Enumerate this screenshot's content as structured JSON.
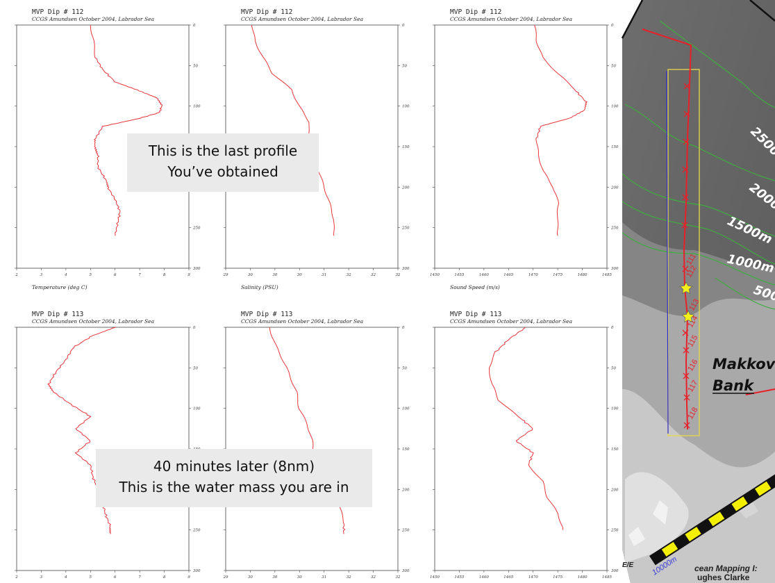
{
  "callouts": {
    "last_profile": [
      "This is the last profile",
      "You’ve obtained"
    ],
    "later": [
      "40 minutes later (8nm)",
      "This is the water mass you are in"
    ]
  },
  "map": {
    "contours": [
      "2500",
      "2000m",
      "1500m",
      "1000m",
      "500"
    ],
    "place": [
      "Makkov",
      "Bank"
    ],
    "stations": [
      "111",
      "112",
      "113",
      "114",
      "115",
      "116",
      "117",
      "118"
    ],
    "scale_label": "10000m",
    "footer": [
      "E/E",
      "cean Mapping I:",
      "ughes Clarke"
    ],
    "colors": {
      "land": "#9a9a9a",
      "contour": "#3fae3f",
      "track": "#e8202a",
      "box": "#e8d84a",
      "line": "#2a2ad8",
      "scale_a": "#f3ef00",
      "scale_b": "#111111"
    }
  },
  "chart_data": [
    {
      "type": "line",
      "title": "MVP Dip # 112",
      "subtitle": "CCGS Amundsen October 2004, Labrador Sea",
      "xlabel": "Temperature (deg C)",
      "x_ticks": [
        "2",
        "3",
        "4",
        "5",
        "6",
        "7",
        "8",
        "9"
      ],
      "xlim": [
        2,
        9
      ],
      "y_ticks": [
        "0",
        "50",
        "100",
        "150",
        "200",
        "250",
        "300"
      ],
      "ylim": [
        0,
        300
      ],
      "series": [
        {
          "depth": [
            0,
            20,
            40,
            55,
            70,
            80,
            90,
            100,
            108,
            115,
            125,
            140,
            150,
            160,
            175,
            190,
            200,
            215,
            230,
            245,
            260
          ],
          "values": [
            5.0,
            5.1,
            5.2,
            5.5,
            6.0,
            6.9,
            7.7,
            7.9,
            7.8,
            7.0,
            5.5,
            5.2,
            5.2,
            5.3,
            5.3,
            5.6,
            5.7,
            6.0,
            6.2,
            6.1,
            6.0
          ]
        }
      ]
    },
    {
      "type": "line",
      "title": "MVP Dip # 112",
      "subtitle": "CCGS Amundsen October 2004, Labrador Sea",
      "xlabel": "Salinity (PSU)",
      "x_ticks": [
        "29",
        "30",
        "30",
        "30",
        "31",
        "32",
        "32",
        "32"
      ],
      "xlim": [
        29,
        36
      ],
      "y_ticks": [
        "0",
        "50",
        "100",
        "150",
        "200",
        "250",
        "300"
      ],
      "ylim": [
        0,
        300
      ],
      "series": [
        {
          "depth": [
            0,
            20,
            40,
            60,
            80,
            100,
            120,
            140,
            160,
            180,
            200,
            220,
            240,
            260
          ],
          "values": [
            30.1,
            30.2,
            30.5,
            30.9,
            31.7,
            32.0,
            32.4,
            32.3,
            32.6,
            32.8,
            33.0,
            33.2,
            33.4,
            33.4
          ]
        }
      ]
    },
    {
      "type": "line",
      "title": "MVP Dip # 112",
      "subtitle": "CCGS Amundsen October 2004, Labrador Sea",
      "xlabel": "Sound Speed (m/s)",
      "x_ticks": [
        "1450",
        "1455",
        "1460",
        "1465",
        "1470",
        "1475",
        "1480",
        "1485"
      ],
      "xlim": [
        1450,
        1485
      ],
      "y_ticks": [
        "0",
        "50",
        "100",
        "150",
        "200",
        "250",
        "300"
      ],
      "ylim": [
        0,
        300
      ],
      "series": [
        {
          "depth": [
            0,
            20,
            40,
            60,
            80,
            95,
            105,
            115,
            125,
            140,
            160,
            180,
            200,
            220,
            240,
            260
          ],
          "values": [
            1470.2,
            1470.8,
            1472.0,
            1475.0,
            1478.5,
            1480.8,
            1480.5,
            1477.5,
            1471.5,
            1470.7,
            1470.9,
            1472.0,
            1474.2,
            1475.2,
            1474.8,
            1475.0
          ]
        }
      ]
    },
    {
      "type": "line",
      "title": "MVP Dip # 113",
      "subtitle": "CCGS Amundsen October 2004, Labrador Sea",
      "xlabel": "",
      "x_ticks": [
        "2",
        "3",
        "4",
        "5",
        "6",
        "7",
        "8",
        "9"
      ],
      "xlim": [
        2,
        9
      ],
      "y_ticks": [
        "0",
        "50",
        "100",
        "150",
        "200",
        "250",
        "300"
      ],
      "ylim": [
        0,
        300
      ],
      "series": [
        {
          "depth": [
            0,
            10,
            25,
            40,
            55,
            70,
            80,
            95,
            110,
            125,
            140,
            155,
            170,
            185,
            200,
            215,
            230,
            245,
            255
          ],
          "values": [
            6.0,
            5.1,
            4.3,
            4.0,
            3.6,
            3.3,
            3.5,
            4.2,
            5.0,
            4.4,
            5.0,
            4.4,
            5.0,
            5.1,
            5.3,
            5.5,
            5.6,
            5.8,
            5.8
          ]
        }
      ]
    },
    {
      "type": "line",
      "title": "MVP Dip # 113",
      "subtitle": "CCGS Amundsen October 2004, Labrador Sea",
      "xlabel": "",
      "x_ticks": [
        "29",
        "30",
        "30",
        "30",
        "31",
        "32",
        "32",
        "32"
      ],
      "xlim": [
        29,
        36
      ],
      "y_ticks": [
        "0",
        "50",
        "100",
        "150",
        "200",
        "250",
        "300"
      ],
      "ylim": [
        0,
        300
      ],
      "series": [
        {
          "depth": [
            0,
            20,
            40,
            60,
            80,
            100,
            120,
            140,
            160,
            180,
            200,
            220,
            240,
            255
          ],
          "values": [
            30.8,
            31.0,
            31.3,
            31.6,
            31.9,
            32.0,
            32.3,
            32.5,
            32.6,
            33.0,
            33.3,
            33.6,
            33.8,
            33.8
          ]
        }
      ]
    },
    {
      "type": "line",
      "title": "MVP Dip # 113",
      "subtitle": "CCGS Amundsen October 2004, Labrador Sea",
      "xlabel": "",
      "x_ticks": [
        "1450",
        "1455",
        "1460",
        "1465",
        "1470",
        "1475",
        "1480",
        "1485"
      ],
      "xlim": [
        1450,
        1485
      ],
      "y_ticks": [
        "0",
        "50",
        "100",
        "150",
        "200",
        "250",
        "300"
      ],
      "ylim": [
        0,
        300
      ],
      "series": [
        {
          "depth": [
            0,
            15,
            30,
            50,
            70,
            90,
            110,
            125,
            140,
            155,
            170,
            190,
            210,
            230,
            250
          ],
          "values": [
            1468.5,
            1465.0,
            1462.5,
            1461.0,
            1461.5,
            1463.0,
            1467.0,
            1470.0,
            1466.5,
            1470.0,
            1469.0,
            1472.0,
            1473.0,
            1475.0,
            1476.0
          ]
        }
      ]
    }
  ]
}
